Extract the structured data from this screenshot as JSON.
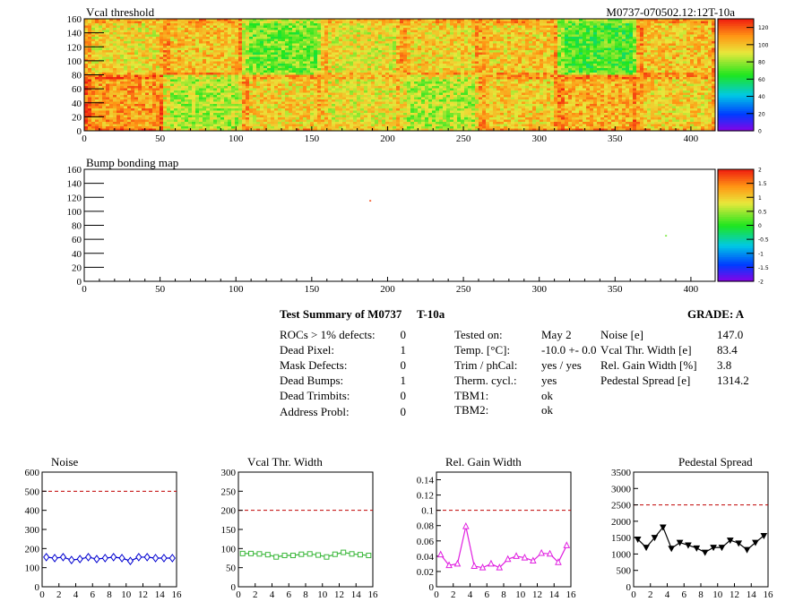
{
  "module_label": "M0737-070502.12:12T-10a",
  "colors": {
    "heat_green": "#1ee61e",
    "heat_yellow": "#e8e83c",
    "heat_red": "#f03214",
    "noise_series": "#0000d0",
    "vcal_series": "#3cb83c",
    "gain_series": "#e020e0",
    "pedestal_series": "#000000",
    "limit_line": "#c00000"
  },
  "summary": {
    "title": "Test Summary of M0737",
    "temp_tag": "T-10a",
    "grade_label": "GRADE:  A",
    "left_rows": [
      {
        "label": "ROCs > 1% defects:",
        "value": "0"
      },
      {
        "label": "Dead Pixel:",
        "value": "1"
      },
      {
        "label": "Mask Defects:",
        "value": "0"
      },
      {
        "label": "Dead Bumps:",
        "value": "1"
      },
      {
        "label": "Dead Trimbits:",
        "value": "0"
      },
      {
        "label": "Address Probl:",
        "value": "0"
      }
    ],
    "mid_rows": [
      {
        "label": "Tested on:",
        "value": "May 2"
      },
      {
        "label": "Temp. [°C]:",
        "value": "-10.0 +- 0.0"
      },
      {
        "label": "Trim / phCal:",
        "value": "yes / yes"
      },
      {
        "label": "Therm. cycl.:",
        "value": "yes"
      },
      {
        "label": "TBM1:",
        "value": "ok"
      },
      {
        "label": "TBM2:",
        "value": "ok"
      }
    ],
    "right_rows": [
      {
        "label": "Noise [e]",
        "value": "147.0"
      },
      {
        "label": "Vcal Thr. Width [e]",
        "value": "83.4"
      },
      {
        "label": "Rel. Gain Width [%]",
        "value": "3.8"
      },
      {
        "label": "Pedestal Spread [e]",
        "value": "1314.2"
      }
    ]
  },
  "chart_data": [
    {
      "type": "heatmap",
      "title": "Vcal threshold",
      "xlim": [
        0,
        416
      ],
      "ylim": [
        0,
        160
      ],
      "xticks": [
        "0",
        "50",
        "100",
        "150",
        "200",
        "250",
        "300",
        "350",
        "400"
      ],
      "yticks": [
        "0",
        "20",
        "40",
        "60",
        "80",
        "100",
        "120",
        "140",
        "160"
      ],
      "colorbar": {
        "min": 0,
        "max": 130,
        "ticks": [
          "0",
          "20",
          "40",
          "60",
          "80",
          "100",
          "120"
        ]
      },
      "roc_mean_levels": {
        "top_row": [
          95,
          100,
          75,
          92,
          97,
          98,
          70,
          100
        ],
        "bottom_row": [
          108,
          82,
          97,
          92,
          83,
          98,
          104,
          97
        ]
      },
      "grid": false
    },
    {
      "type": "heatmap",
      "title": "Bump bonding map",
      "xlim": [
        0,
        416
      ],
      "ylim": [
        0,
        160
      ],
      "xticks": [
        "0",
        "50",
        "100",
        "150",
        "200",
        "250",
        "300",
        "350",
        "400"
      ],
      "yticks": [
        "0",
        "20",
        "40",
        "60",
        "80",
        "100",
        "120",
        "140",
        "160"
      ],
      "colorbar": {
        "min": -2,
        "max": 2,
        "ticks": [
          "-2",
          "-1.5",
          "-1",
          "-0.5",
          "0",
          "0.5",
          "1",
          "1.5",
          "2"
        ]
      },
      "points": [
        {
          "x": 188,
          "y": 116,
          "v": 1.8
        },
        {
          "x": 383,
          "y": 66,
          "v": 0.3
        }
      ],
      "grid": false
    },
    {
      "type": "line",
      "title": "Noise",
      "x": [
        0,
        1,
        2,
        3,
        4,
        5,
        6,
        7,
        8,
        9,
        10,
        11,
        12,
        13,
        14,
        15
      ],
      "values": [
        155,
        150,
        155,
        140,
        145,
        155,
        145,
        150,
        155,
        150,
        135,
        155,
        155,
        150,
        150,
        150
      ],
      "limit": 500,
      "xlim": [
        0,
        16
      ],
      "ylim": [
        0,
        600
      ],
      "xticks": [
        "0",
        "2",
        "4",
        "6",
        "8",
        "10",
        "12",
        "14",
        "16"
      ],
      "yticks": [
        "0",
        "100",
        "200",
        "300",
        "400",
        "500",
        "600"
      ],
      "marker": "diamond"
    },
    {
      "type": "line",
      "title": "Vcal Thr. Width",
      "x": [
        0,
        1,
        2,
        3,
        4,
        5,
        6,
        7,
        8,
        9,
        10,
        11,
        12,
        13,
        14,
        15
      ],
      "values": [
        87,
        87,
        86,
        84,
        78,
        82,
        82,
        85,
        86,
        83,
        78,
        85,
        90,
        86,
        84,
        82
      ],
      "limit": 200,
      "xlim": [
        0,
        16
      ],
      "ylim": [
        0,
        300
      ],
      "xticks": [
        "0",
        "2",
        "4",
        "6",
        "8",
        "10",
        "12",
        "14",
        "16"
      ],
      "yticks": [
        "0",
        "50",
        "100",
        "150",
        "200",
        "250",
        "300"
      ],
      "marker": "square"
    },
    {
      "type": "line",
      "title": "Rel. Gain Width",
      "x": [
        0,
        1,
        2,
        3,
        4,
        5,
        6,
        7,
        8,
        9,
        10,
        11,
        12,
        13,
        14,
        15
      ],
      "values": [
        0.042,
        0.028,
        0.03,
        0.079,
        0.027,
        0.025,
        0.03,
        0.025,
        0.036,
        0.04,
        0.038,
        0.034,
        0.044,
        0.043,
        0.032,
        0.054
      ],
      "limit": 0.1,
      "xlim": [
        0,
        16
      ],
      "ylim": [
        0,
        0.15
      ],
      "xticks": [
        "0",
        "2",
        "4",
        "6",
        "8",
        "10",
        "12",
        "14",
        "16"
      ],
      "yticks": [
        "0",
        "0.02",
        "0.04",
        "0.06",
        "0.08",
        "0.1",
        "0.12",
        "0.14"
      ],
      "marker": "triangle"
    },
    {
      "type": "line",
      "title": "Pedestal Spread",
      "x": [
        0,
        1,
        2,
        3,
        4,
        5,
        6,
        7,
        8,
        9,
        10,
        11,
        12,
        13,
        14,
        15
      ],
      "values": [
        1450,
        1200,
        1500,
        1820,
        1170,
        1350,
        1270,
        1180,
        1050,
        1200,
        1200,
        1420,
        1330,
        1130,
        1350,
        1560
      ],
      "limit": 2500,
      "xlim": [
        0,
        16
      ],
      "ylim": [
        0,
        3500
      ],
      "xticks": [
        "0",
        "2",
        "4",
        "6",
        "8",
        "10",
        "12",
        "14",
        "16"
      ],
      "yticks": [
        "0",
        "500",
        "1000",
        "1500",
        "2000",
        "2500",
        "3000",
        "3500"
      ],
      "marker": "triangle-down"
    }
  ]
}
